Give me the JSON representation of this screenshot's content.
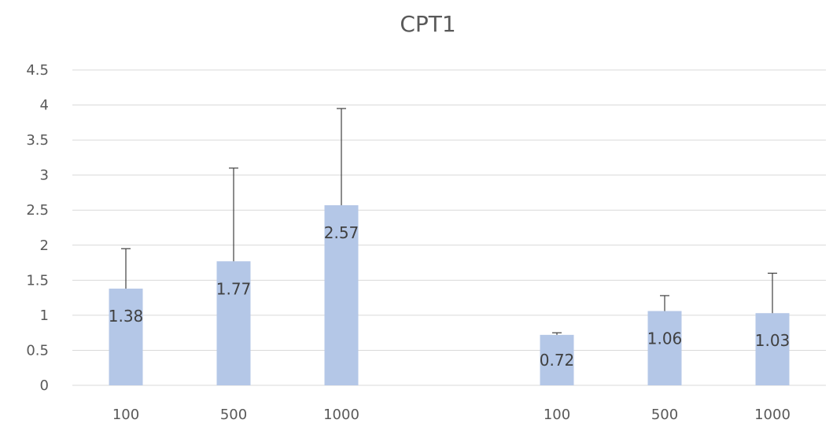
{
  "chart_data": {
    "type": "bar",
    "title": "CPT1",
    "xlabel": "",
    "ylabel": "",
    "ylim": [
      0,
      4.5
    ],
    "yticks": [
      0,
      0.5,
      1,
      1.5,
      2,
      2.5,
      3,
      3.5,
      4,
      4.5
    ],
    "ytick_labels": [
      "0",
      "0.5",
      "1",
      "1.5",
      "2",
      "2.5",
      "3",
      "3.5",
      "4",
      "4.5"
    ],
    "categories": [
      "100",
      "500",
      "1000",
      "",
      "100",
      "500",
      "1000"
    ],
    "values": [
      1.38,
      1.77,
      2.57,
      null,
      0.72,
      1.06,
      1.03
    ],
    "data_labels": [
      "1.38",
      "1.77",
      "2.57",
      "",
      "0.72",
      "1.06",
      "1.03"
    ],
    "error_upper": [
      1.95,
      3.1,
      3.95,
      null,
      0.75,
      1.28,
      1.6
    ],
    "grid": true,
    "legend": "none",
    "bar_color": "#b4c7e7",
    "error_bar_color": "#404040"
  }
}
